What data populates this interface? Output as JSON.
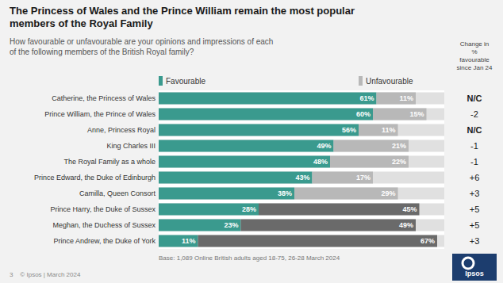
{
  "chart_data": {
    "type": "bar",
    "orientation": "horizontal",
    "stacked": true,
    "data_labels": true,
    "tick_labels": false,
    "grid": false,
    "legend": "top",
    "title": "The Princess of Wales and the Prince William remain the most popular\nmembers of the Royal Family",
    "subtitle": "How favourable or unfavourable are your opinions and impressions of each\nof the following members of the British Royal family?",
    "categories": [
      "Catherine, the Princess of Wales",
      "Prince William, the Prince of Wales",
      "Anne, Princess Royal",
      "King Charles III",
      "The Royal Family as a whole",
      "Prince Edward, the Duke of Edinburgh",
      "Camilla, Queen Consort",
      "Prince Harry, the Duke of Sussex",
      "Meghan, the Duchess of Sussex",
      "Prince Andrew, the Duke of York"
    ],
    "series": [
      {
        "name": "Favourable",
        "color": "#3a9a8e",
        "values": [
          61,
          60,
          56,
          49,
          48,
          43,
          38,
          28,
          23,
          11
        ],
        "value_labels": [
          "61%",
          "60%",
          "56%",
          "49%",
          "48%",
          "43%",
          "38%",
          "28%",
          "23%",
          "11%"
        ]
      },
      {
        "name": "Unfavourable",
        "color": "#b8b8b8",
        "colors": [
          "#b8b8b8",
          "#b8b8b8",
          "#b8b8b8",
          "#b8b8b8",
          "#b8b8b8",
          "#b8b8b8",
          "#b8b8b8",
          "#6a6a6a",
          "#6a6a6a",
          "#6a6a6a"
        ],
        "values": [
          11,
          15,
          11,
          21,
          22,
          17,
          29,
          45,
          49,
          67
        ],
        "value_labels": [
          "11%",
          "15%",
          "11%",
          "21%",
          "22%",
          "17%",
          "29%",
          "45%",
          "49%",
          "67%"
        ]
      }
    ],
    "xlim": [
      0,
      80
    ],
    "annotations": [
      {
        "text": "Change in\n%\nfavourable\nsince Jan 24",
        "labels": [
          "N/C",
          "-2",
          "N/C",
          "-1",
          "-1",
          "+6",
          "+3",
          "+5",
          "+5",
          "+3"
        ]
      },
      {
        "text": "Base: 1,089 Online British adults aged 18-75, 26-28 March 2024"
      },
      {
        "text": "3    © Ipsos | March 2024"
      },
      {
        "text": "Ipsos"
      }
    ]
  }
}
